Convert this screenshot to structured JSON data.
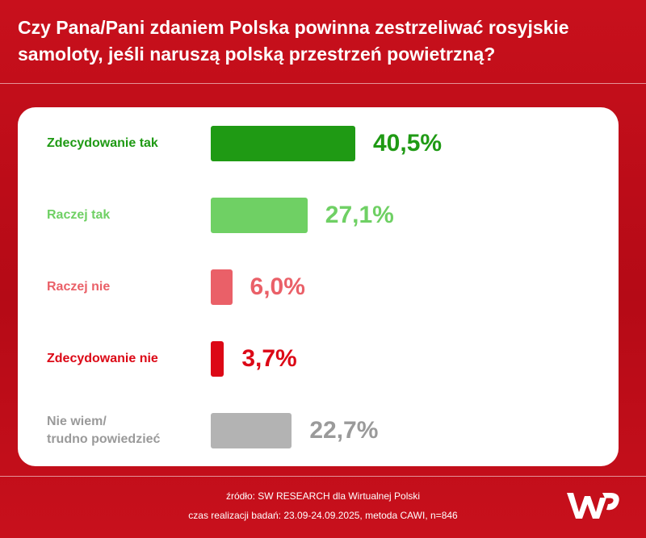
{
  "chart_data": {
    "type": "bar",
    "orientation": "horizontal",
    "title": "Czy Pana/Pani zdaniem Polska powinna zestrzeliwać rosyjskie samoloty, jeśli naruszą polską przestrzeń powietrzną?",
    "categories": [
      "Zdecydowanie tak",
      "Raczej tak",
      "Raczej nie",
      "Zdecydowanie nie",
      "Nie wiem/\ntrudno powiedzieć"
    ],
    "values": [
      40.5,
      27.1,
      6.0,
      3.7,
      22.7
    ],
    "value_labels": [
      "40,5%",
      "27,1%",
      "6,0%",
      "3,7%",
      "22,7%"
    ],
    "colors": [
      "#1f9a14",
      "#6fd064",
      "#ea6068",
      "#dc0816",
      "#b3b3b3"
    ],
    "label_colors": [
      "#1f9a14",
      "#6fd064",
      "#ea6068",
      "#dc0816",
      "#9a9a9a"
    ],
    "source": "źródło: SW RESEARCH dla Wirtualnej Polski",
    "footnote": "czas realizacji badań: 23.09-24.09.2025, metoda CAWI, n=846"
  }
}
